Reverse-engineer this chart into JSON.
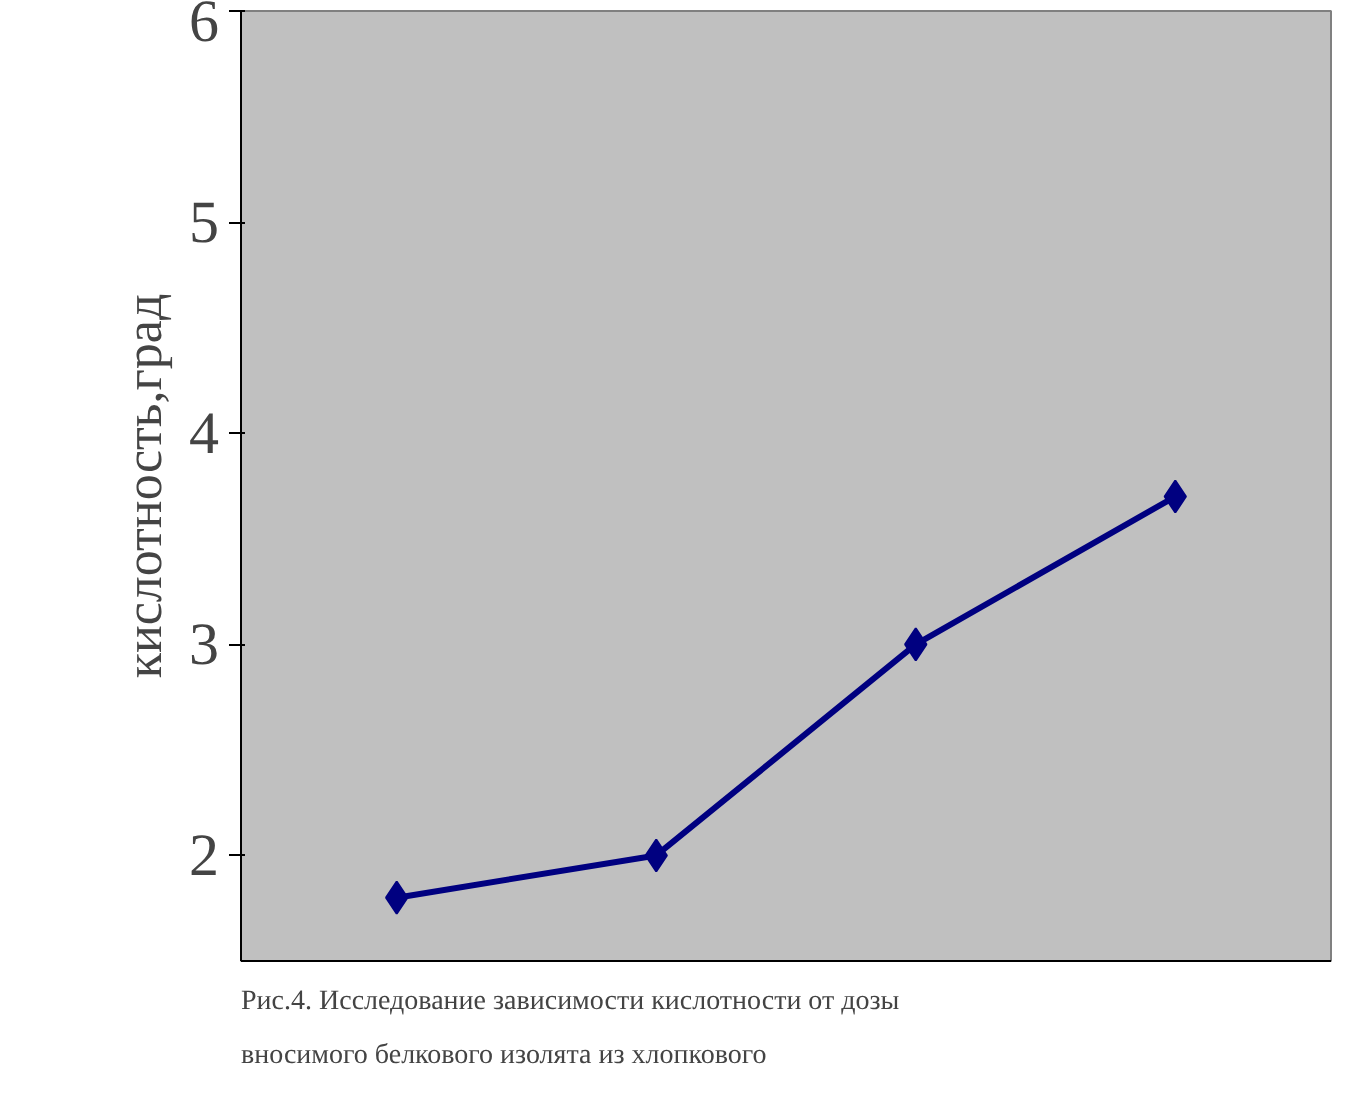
{
  "chart_data": {
    "type": "line",
    "ylabel": "кислотность,град",
    "categories": [
      null,
      null,
      null,
      null
    ],
    "series": [
      {
        "color": "#000080",
        "values": [
          1.8,
          2.0,
          3.0,
          3.7
        ]
      }
    ],
    "ylim": [
      1.5,
      6
    ],
    "yticks": [
      2,
      3,
      4,
      5,
      6
    ],
    "marker": "diamond",
    "line_style": "solid",
    "grid": false,
    "annotations": [
      "Рис.4. Исследование зависимости кислотности от дозы вносимого  белкового изолята из хлопкового"
    ]
  }
}
